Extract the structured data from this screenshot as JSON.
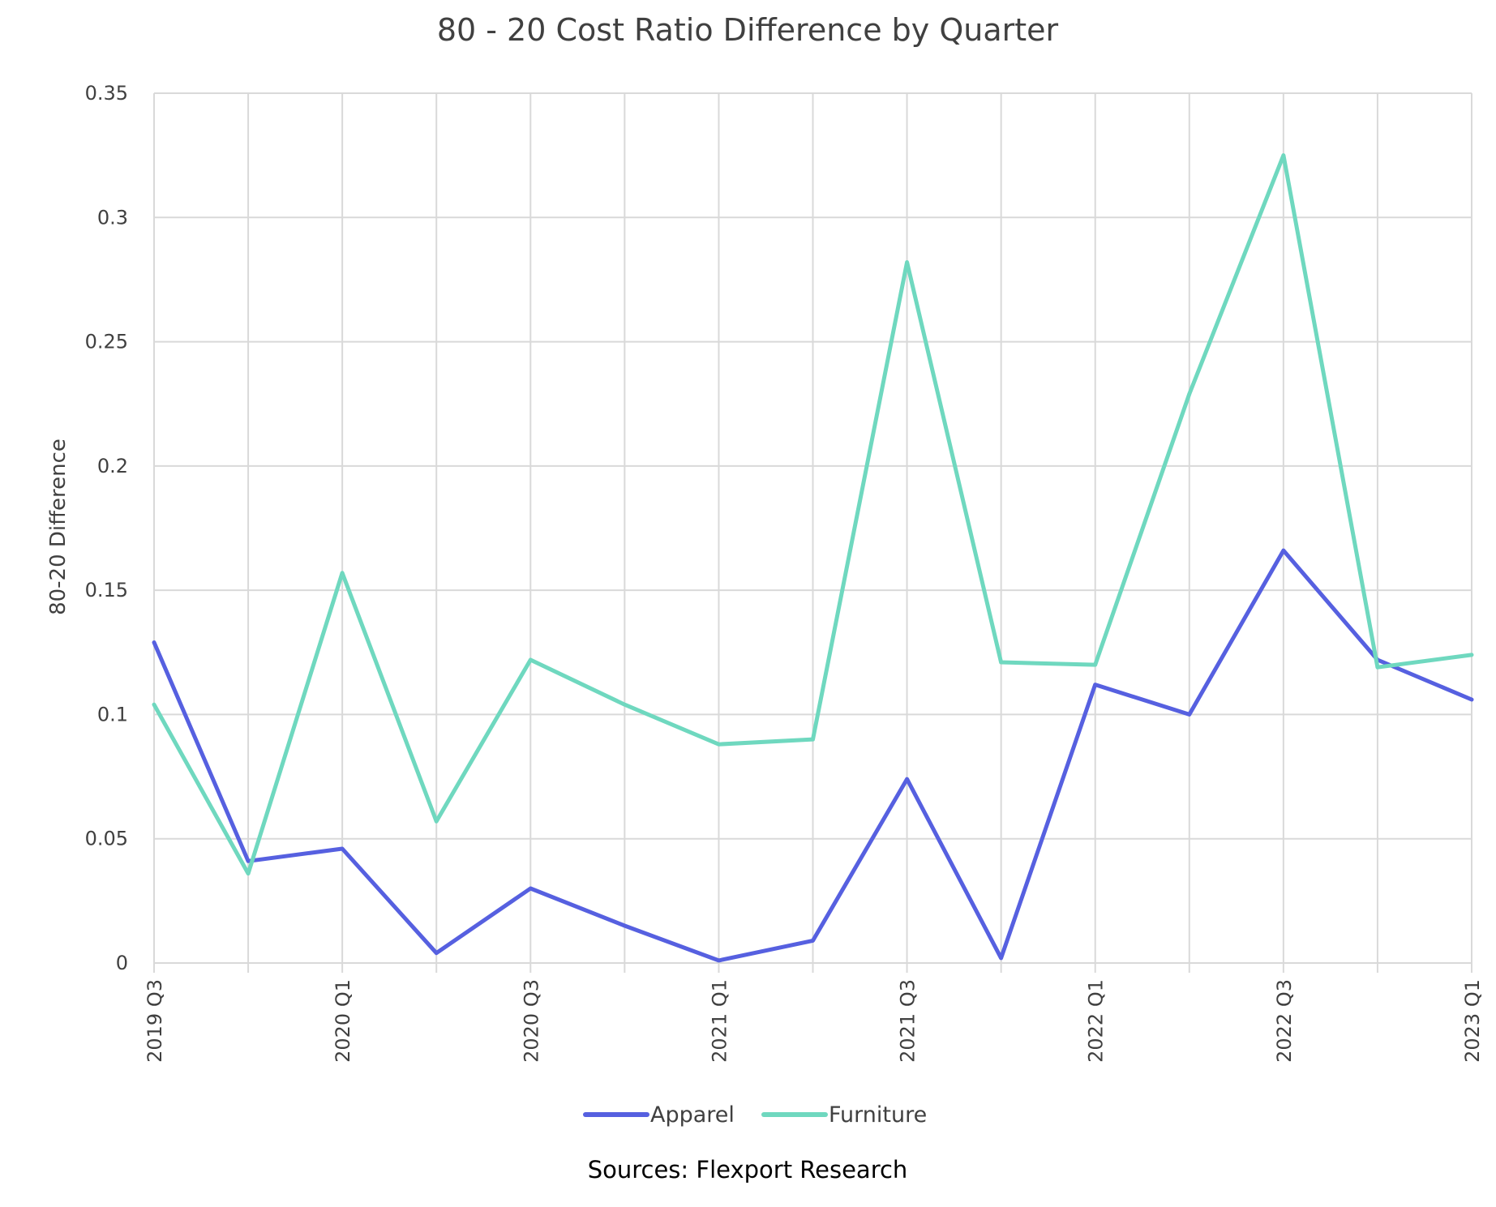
{
  "chart_data": {
    "type": "line",
    "title": "80 - 20 Cost Ratio Difference by Quarter",
    "xlabel": "",
    "ylabel": "80-20 Difference",
    "ylim": [
      0,
      0.35
    ],
    "yticks": [
      "0",
      "0.05",
      "0.1",
      "0.15",
      "0.2",
      "0.25",
      "0.3",
      "0.35"
    ],
    "grid": true,
    "legend_position": "bottom",
    "categories": [
      "2019 Q3",
      "2019 Q4",
      "2020 Q1",
      "2020 Q2",
      "2020 Q3",
      "2020 Q4",
      "2021 Q1",
      "2021 Q2",
      "2021 Q3",
      "2021 Q4",
      "2022 Q1",
      "2022 Q2",
      "2022 Q3",
      "2022 Q4",
      "2023 Q1"
    ],
    "tick_labels": [
      "2019 Q3",
      "",
      "2020 Q1",
      "",
      "2020 Q3",
      "",
      "2021 Q1",
      "",
      "2021 Q3",
      "",
      "2022 Q1",
      "",
      "2022 Q3",
      "",
      "2023 Q1"
    ],
    "series": [
      {
        "name": "Apparel",
        "color": "#5660e0",
        "values": [
          0.129,
          0.041,
          0.046,
          0.004,
          0.03,
          0.015,
          0.001,
          0.009,
          0.074,
          0.002,
          0.112,
          0.1,
          0.166,
          0.122,
          0.106
        ]
      },
      {
        "name": "Furniture",
        "color": "#6fd8bf",
        "values": [
          0.104,
          0.036,
          0.157,
          0.057,
          0.122,
          0.104,
          0.088,
          0.09,
          0.282,
          0.121,
          0.12,
          0.229,
          0.325,
          0.119,
          0.124
        ]
      }
    ],
    "source": "Sources: Flexport Research"
  }
}
